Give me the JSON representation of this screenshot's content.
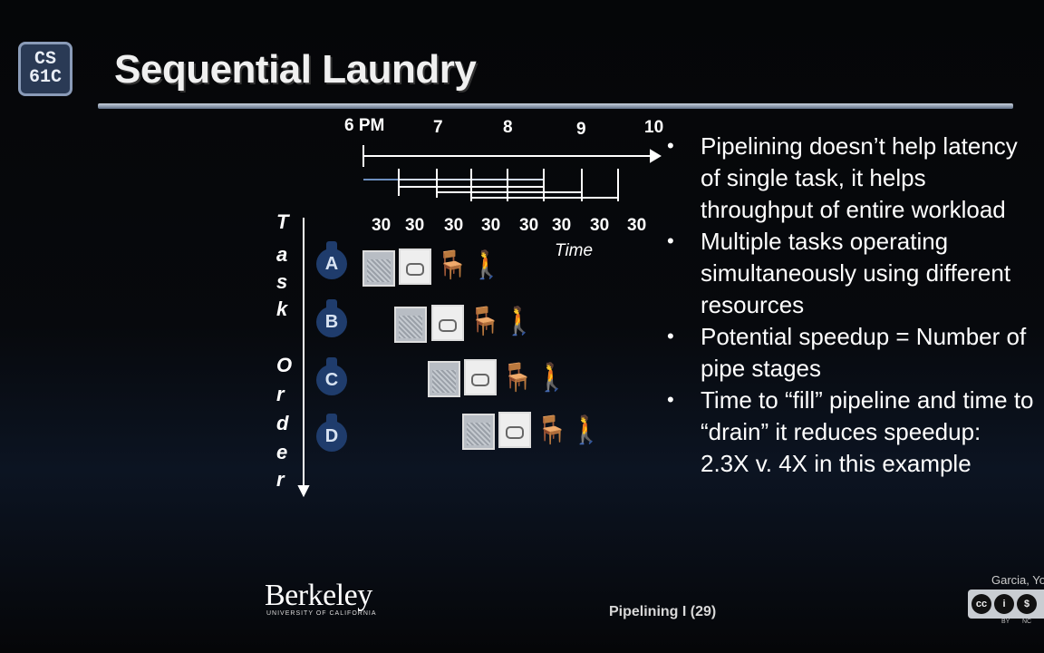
{
  "logo": {
    "line1": "CS",
    "line2": "61C"
  },
  "slide": {
    "title": "Sequential Laundry"
  },
  "timeline": {
    "hours": [
      "6 PM",
      "7",
      "8",
      "9",
      "10"
    ],
    "durations": [
      "30",
      "30",
      "30",
      "30",
      "30",
      "30",
      "30",
      "30"
    ],
    "time_label": "Time"
  },
  "task_order_letters": [
    "T",
    "a",
    "s",
    "k",
    "O",
    "r",
    "d",
    "e",
    "r"
  ],
  "tasks": [
    "A",
    "B",
    "C",
    "D"
  ],
  "bullets": [
    "Pipelining doesn’t help latency of single task, it helps throughput of entire workload",
    "Multiple tasks operating simultaneously using different resources",
    "Potential speedup = Number of pipe stages",
    "Time to “fill” pipeline and time to “drain” it reduces speedup: 2.3X v. 4X in this example"
  ],
  "footer": {
    "berkeley": "Berkeley",
    "berkeley_sub": "UNIVERSITY OF CALIFORNIA",
    "page": "Pipelining I (29)",
    "author": "Garcia, Yo",
    "license_labels": [
      "BY",
      "NC"
    ]
  },
  "colors": {
    "background": "#050608",
    "task_badge": "#1f3c6c",
    "text": "#ffffff"
  }
}
